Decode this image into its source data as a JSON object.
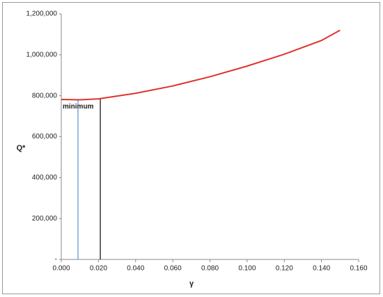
{
  "chart_data": {
    "type": "line",
    "x_label": "γ",
    "y_label": "Q*",
    "x": [
      0,
      0.01,
      0.02,
      0.04,
      0.06,
      0.08,
      0.1,
      0.12,
      0.14,
      0.15
    ],
    "series": [
      {
        "color": "#e0312c",
        "values": [
          782000,
          780000,
          785000,
          812000,
          848000,
          893000,
          945000,
          1003000,
          1070000,
          1120000
        ]
      }
    ],
    "markers": [
      {
        "x": 0.009,
        "y": 780000,
        "color": "#4f8fd0"
      },
      {
        "x": 0.021,
        "y": 785000,
        "color": "#000000"
      }
    ],
    "annotation": "minimum",
    "xlim": [
      0,
      0.16
    ],
    "xticks": [
      {
        "value": 0,
        "label": "0.000"
      },
      {
        "value": 0.02,
        "label": "0.020"
      },
      {
        "value": 0.04,
        "label": "0.040"
      },
      {
        "value": 0.06,
        "label": "0.060"
      },
      {
        "value": 0.08,
        "label": "0.080"
      },
      {
        "value": 0.1,
        "label": "0.100"
      },
      {
        "value": 0.12,
        "label": "0.120"
      },
      {
        "value": 0.14,
        "label": "0.140"
      },
      {
        "value": 0.16,
        "label": "0.160"
      }
    ],
    "ylim": [
      0,
      1200000
    ],
    "yticks": [
      {
        "value": 0,
        "label": "-"
      },
      {
        "value": 200000,
        "label": "200,000"
      },
      {
        "value": 400000,
        "label": "400,000"
      },
      {
        "value": 600000,
        "label": "600,000"
      },
      {
        "value": 800000,
        "label": "800,000"
      },
      {
        "value": 1000000,
        "label": "1,000,000"
      },
      {
        "value": 1200000,
        "label": "1,200,000"
      }
    ]
  }
}
